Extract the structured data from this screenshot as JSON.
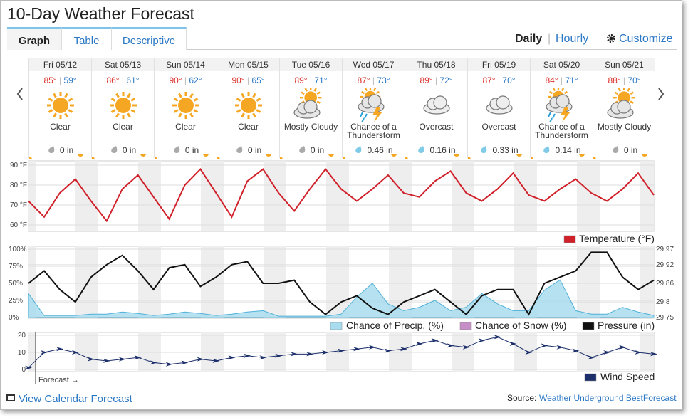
{
  "title": "10-Day Weather Forecast",
  "tabs": [
    "Graph",
    "Table",
    "Descriptive"
  ],
  "views": [
    "Daily",
    "Hourly"
  ],
  "customize": "Customize",
  "days": [
    {
      "date": "Fri 05/12",
      "high": "85°",
      "low": "59°",
      "condition": "Clear",
      "precip": "0 in"
    },
    {
      "date": "Sat 05/13",
      "high": "86°",
      "low": "61°",
      "condition": "Clear",
      "precip": "0 in"
    },
    {
      "date": "Sun 05/14",
      "high": "90°",
      "low": "62°",
      "condition": "Clear",
      "precip": "0 in"
    },
    {
      "date": "Mon 05/15",
      "high": "90°",
      "low": "65°",
      "condition": "Clear",
      "precip": "0 in"
    },
    {
      "date": "Tue 05/16",
      "high": "89°",
      "low": "71°",
      "condition": "Mostly Cloudy",
      "precip": "0 in"
    },
    {
      "date": "Wed 05/17",
      "high": "87°",
      "low": "73°",
      "condition": "Chance of a Thunderstorm",
      "precip": "0.46 in"
    },
    {
      "date": "Thu 05/18",
      "high": "89°",
      "low": "72°",
      "condition": "Overcast",
      "precip": "0.16 in"
    },
    {
      "date": "Fri 05/19",
      "high": "87°",
      "low": "70°",
      "condition": "Overcast",
      "precip": "0.33 in"
    },
    {
      "date": "Sat 05/20",
      "high": "84°",
      "low": "71°",
      "condition": "Chance of a Thunderstorm",
      "precip": "0.14 in"
    },
    {
      "date": "Sun 05/21",
      "high": "88°",
      "low": "70°",
      "condition": "Mostly Cloudy",
      "precip": "0 in"
    }
  ],
  "temperature": {
    "legend": "Temperature (°F)",
    "color": "#d0202a",
    "ylim": [
      60,
      90
    ],
    "yticks": [
      {
        "value": 90,
        "label": "90 °F"
      },
      {
        "value": 80,
        "label": "80 °F"
      },
      {
        "value": 70,
        "label": "70 °F"
      },
      {
        "value": 60,
        "label": "60 °F"
      }
    ],
    "values": [
      72,
      64,
      76,
      83,
      72,
      62,
      78,
      85,
      74,
      63,
      80,
      88,
      76,
      64,
      82,
      88,
      76,
      67,
      78,
      88,
      78,
      72,
      78,
      85,
      76,
      74,
      82,
      87,
      76,
      72,
      78,
      86,
      75,
      72,
      78,
      83,
      76,
      72,
      78,
      86,
      75
    ]
  },
  "precip": {
    "legend": "Chance of Precip. (%)",
    "color": "#a8dcef",
    "ylim": [
      0,
      100
    ],
    "yticks": [
      {
        "value": 100,
        "label": "100%"
      },
      {
        "value": 75,
        "label": "75%"
      },
      {
        "value": 50,
        "label": "50%"
      },
      {
        "value": 25,
        "label": "25%"
      },
      {
        "value": 0,
        "label": "0%"
      }
    ],
    "values": [
      35,
      3,
      3,
      3,
      5,
      5,
      8,
      6,
      3,
      5,
      8,
      6,
      3,
      5,
      8,
      10,
      2,
      2,
      2,
      2,
      5,
      30,
      50,
      20,
      10,
      15,
      25,
      10,
      15,
      35,
      20,
      10,
      10,
      40,
      55,
      10,
      5,
      5,
      15,
      8,
      3
    ]
  },
  "snow": {
    "legend": "Chance of Snow (%)",
    "color": "#c58ec6"
  },
  "pressure": {
    "legend": "Pressure (in)",
    "color": "#111111",
    "y2lim": [
      29.75,
      29.97
    ],
    "y2ticks": [
      29.97,
      29.92,
      29.86,
      29.8,
      29.75
    ],
    "values": [
      29.86,
      29.9,
      29.84,
      29.8,
      29.88,
      29.92,
      29.95,
      29.9,
      29.84,
      29.91,
      29.92,
      29.85,
      29.88,
      29.92,
      29.93,
      29.86,
      29.86,
      29.87,
      29.8,
      29.76,
      29.8,
      29.82,
      29.78,
      29.76,
      29.8,
      29.82,
      29.84,
      29.8,
      29.76,
      29.82,
      29.84,
      29.84,
      29.76,
      29.86,
      29.88,
      29.9,
      29.96,
      29.96,
      29.88,
      29.84,
      29.87
    ]
  },
  "wind": {
    "legend": "Wind Speed",
    "color": "#1c2f6b",
    "ylim": [
      0,
      20
    ],
    "yticks": [
      0,
      10,
      20
    ],
    "values": [
      1,
      10,
      12,
      10,
      6,
      5,
      6,
      7,
      4,
      3,
      4,
      6,
      5,
      7,
      8,
      7,
      8,
      9,
      9,
      10,
      11,
      12,
      13,
      11,
      12,
      15,
      17,
      14,
      13,
      17,
      19,
      15,
      10,
      14,
      13,
      11,
      7,
      10,
      13,
      10,
      9
    ]
  },
  "forecast_marker": "Forecast →",
  "footer": {
    "calendar": "View Calendar Forecast",
    "source_label": "Source:",
    "source": "Weather Underground BestForecast"
  }
}
